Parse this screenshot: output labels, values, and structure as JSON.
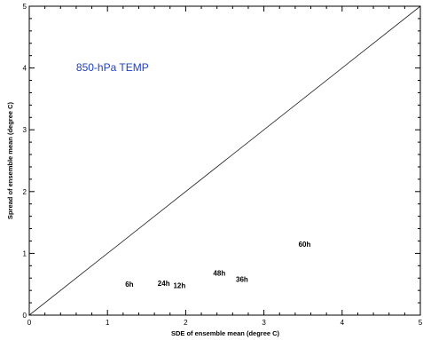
{
  "chart_data": {
    "type": "scatter",
    "xlabel": "SDE of ensemble mean (degree C)",
    "ylabel": "Spread of ensemble mean (degree C)",
    "xlim": [
      0,
      5
    ],
    "ylim": [
      0,
      5
    ],
    "xticks": [
      0,
      1,
      2,
      3,
      4,
      5
    ],
    "yticks": [
      0,
      1,
      2,
      3,
      4,
      5
    ],
    "minor_ticks_per_major": 4,
    "grid": false,
    "reference_line": {
      "from": [
        0,
        0
      ],
      "to": [
        5,
        5
      ]
    },
    "annotation": {
      "text": "850-hPa TEMP",
      "color": "#1f3fbf",
      "x": 0.6,
      "y": 3.95
    },
    "points": [
      {
        "label": "6h",
        "x": 1.28,
        "y": 0.5
      },
      {
        "label": "24h",
        "x": 1.72,
        "y": 0.52
      },
      {
        "label": "12h",
        "x": 1.92,
        "y": 0.48
      },
      {
        "label": "48h",
        "x": 2.43,
        "y": 0.68
      },
      {
        "label": "36h",
        "x": 2.72,
        "y": 0.58
      },
      {
        "label": "60h",
        "x": 3.52,
        "y": 1.15
      }
    ]
  }
}
